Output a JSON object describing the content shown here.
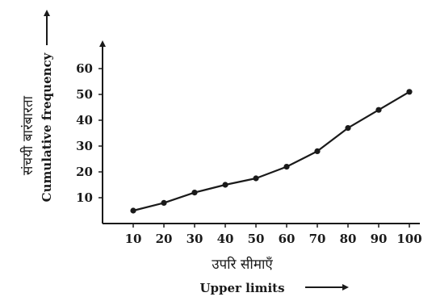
{
  "chart_data": {
    "type": "line",
    "x": [
      10,
      20,
      30,
      40,
      50,
      60,
      70,
      80,
      90,
      100
    ],
    "series": [
      {
        "values": [
          5,
          8,
          12,
          15,
          17.5,
          22,
          28,
          37,
          44,
          51
        ]
      }
    ],
    "x_ticks": [
      "10",
      "20",
      "30",
      "40",
      "50",
      "60",
      "70",
      "80",
      "90",
      "100"
    ],
    "y_ticks": [
      "10",
      "20",
      "30",
      "40",
      "50",
      "60"
    ],
    "xlabel_hi": "उपरि सीमाएँ",
    "xlabel_en": "Upper limits",
    "ylabel_hi": "संचयी बारंबारता",
    "ylabel_en": "Cumulative frequency",
    "xlim": [
      0,
      100
    ],
    "ylim": [
      0,
      60
    ],
    "grid": false,
    "colors": {
      "line": "#1a1a1a",
      "point": "#1a1a1a"
    }
  }
}
